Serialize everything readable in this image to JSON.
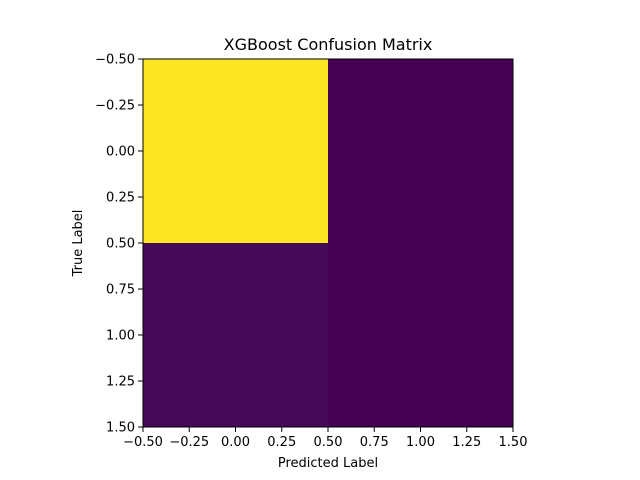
{
  "chart_data": {
    "type": "heatmap",
    "title": "XGBoost Confusion Matrix",
    "xlabel": "Predicted Label",
    "ylabel": "True Label",
    "rows": 2,
    "cols": 2,
    "relative_intensity": [
      [
        1.0,
        0.0
      ],
      [
        0.02,
        0.0
      ]
    ],
    "cell_colors": [
      [
        "#fde725",
        "#440154"
      ],
      [
        "#450a57",
        "#440154"
      ]
    ],
    "colormap": "viridis",
    "xlim": [
      -0.5,
      1.5
    ],
    "ylim": [
      1.5,
      -0.5
    ],
    "x_ticks": [
      "−0.50",
      "−0.25",
      "0.00",
      "0.25",
      "0.50",
      "0.75",
      "1.00",
      "1.25",
      "1.50"
    ],
    "y_ticks": [
      "−0.50",
      "−0.25",
      "0.00",
      "0.25",
      "0.50",
      "0.75",
      "1.00",
      "1.25",
      "1.50"
    ],
    "grid": false,
    "colorbar": false
  }
}
